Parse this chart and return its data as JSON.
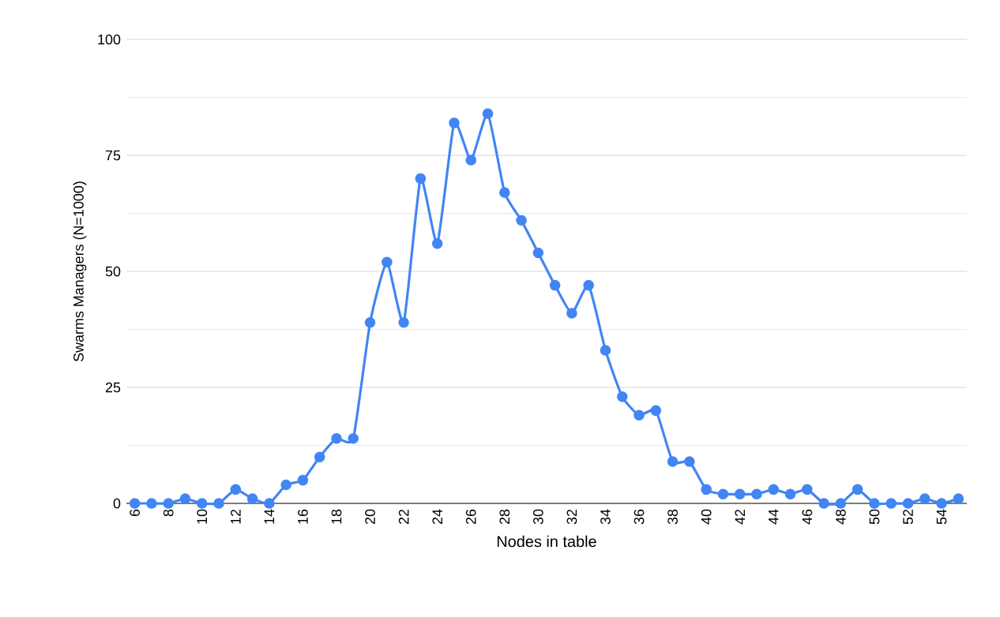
{
  "chart_data": {
    "type": "line",
    "xlabel": "Nodes in table",
    "ylabel": "Swarms Managers (N=1000)",
    "categories": [
      "6",
      null,
      "8",
      null,
      "10",
      null,
      "12",
      null,
      "14",
      null,
      "16",
      null,
      "18",
      null,
      "20",
      null,
      "22",
      null,
      "24",
      null,
      "26",
      null,
      "28",
      null,
      "30",
      null,
      "32",
      null,
      "34",
      null,
      "36",
      null,
      "38",
      null,
      "40",
      null,
      "42",
      null,
      "44",
      null,
      "46",
      null,
      "48",
      null,
      "50",
      null,
      "52",
      null,
      "54",
      null
    ],
    "series": [
      {
        "color": "#4285f4",
        "values": [
          0,
          0,
          0,
          1,
          0,
          0,
          3,
          1,
          0,
          4,
          5,
          10,
          14,
          14,
          39,
          52,
          39,
          70,
          56,
          82,
          74,
          84,
          67,
          61,
          54,
          47,
          41,
          47,
          33,
          23,
          19,
          20,
          9,
          9,
          3,
          2,
          2,
          2,
          3,
          2,
          3,
          0,
          0,
          3,
          0,
          0,
          0,
          1,
          0,
          1
        ]
      }
    ],
    "ylim": [
      0,
      100
    ],
    "yticks": [
      0,
      25,
      50,
      75,
      100
    ],
    "grid": "y",
    "marker": "circle",
    "line_style": "solid"
  }
}
